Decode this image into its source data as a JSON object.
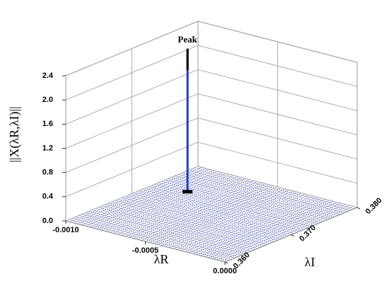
{
  "chart_data": {
    "type": "surface3d",
    "annotation": "Peak",
    "x_label": "λR",
    "y_label": "λI",
    "z_label": "||X(λR,λI)||",
    "xlim": [
      -0.001,
      0
    ],
    "ylim": [
      0.36,
      0.38
    ],
    "zlim": [
      0,
      2.4
    ],
    "xticks": [
      {
        "value": -0.001,
        "label": "-0.0010"
      },
      {
        "value": -0.0005,
        "label": "-0.0005"
      },
      {
        "value": 0,
        "label": "0.0000"
      }
    ],
    "yticks": [
      {
        "value": 0.36,
        "label": "0.360"
      },
      {
        "value": 0.37,
        "label": "0.370"
      },
      {
        "value": 0.38,
        "label": "0.380"
      }
    ],
    "zticks": [
      {
        "value": 0,
        "label": "0.0"
      },
      0.4,
      0.8,
      1.2,
      1.6,
      {
        "value": 2,
        "label": "2.0"
      },
      2.4
    ],
    "grid": true,
    "series": [
      {
        "color": "#1f3fbf",
        "x": [
          -0.0008
        ],
        "y": [
          0.3736
        ],
        "z": [
          2.37
        ]
      }
    ]
  }
}
